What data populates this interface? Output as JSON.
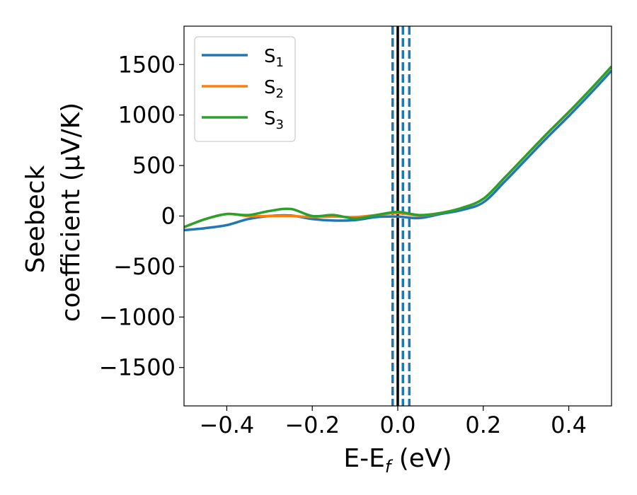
{
  "chart_data": {
    "type": "line",
    "title": "",
    "xlabel": "E-E",
    "xlabel_sub": "f",
    "xlabel_unit": " (eV)",
    "ylabel_line1": "Seebeck",
    "ylabel_line2": "coefficient  (μV/K)",
    "xlim": [
      -0.5,
      0.5
    ],
    "ylim": [
      -1880,
      1880
    ],
    "xticks": [
      -0.4,
      -0.2,
      0.0,
      0.2,
      0.4
    ],
    "xtick_labels": [
      "−0.4",
      "−0.2",
      "0.0",
      "0.2",
      "0.4"
    ],
    "yticks": [
      -1500,
      -1000,
      -500,
      0,
      500,
      1000,
      1500
    ],
    "ytick_labels": [
      "−1500",
      "−1000",
      "−500",
      "0",
      "500",
      "1000",
      "1500"
    ],
    "grid": false,
    "legend_position": "top-left",
    "vertical_lines": [
      {
        "x": -0.012,
        "style": "dashed",
        "color": "#1f77b4"
      },
      {
        "x": 0.0,
        "style": "solid",
        "color": "#000000"
      },
      {
        "x": 0.012,
        "style": "dashed",
        "color": "#1f77b4"
      },
      {
        "x": 0.027,
        "style": "dashed",
        "color": "#1f77b4"
      }
    ],
    "series": [
      {
        "name": "S",
        "sub": "1",
        "color": "#1f77b4",
        "x": [
          -0.5,
          -0.45,
          -0.4,
          -0.35,
          -0.3,
          -0.25,
          -0.2,
          -0.15,
          -0.1,
          -0.05,
          0.0,
          0.05,
          0.1,
          0.15,
          0.2,
          0.25,
          0.3,
          0.35,
          0.4,
          0.45,
          0.5
        ],
        "y": [
          -140,
          -120,
          -90,
          -30,
          0,
          5,
          -30,
          -45,
          -40,
          -10,
          -5,
          -20,
          20,
          60,
          135,
          340,
          560,
          780,
          990,
          1210,
          1440
        ]
      },
      {
        "name": "S",
        "sub": "2",
        "color": "#ff7f0e",
        "x": [
          -0.5,
          -0.45,
          -0.4,
          -0.35,
          -0.3,
          -0.25,
          -0.2,
          -0.15,
          -0.1,
          -0.05,
          0.0,
          0.05,
          0.1,
          0.15,
          0.2,
          0.25,
          0.3,
          0.35,
          0.4,
          0.45,
          0.5
        ],
        "y": [
          -110,
          -30,
          20,
          0,
          0,
          0,
          -10,
          -5,
          -10,
          10,
          30,
          5,
          30,
          80,
          170,
          380,
          600,
          820,
          1030,
          1250,
          1480
        ]
      },
      {
        "name": "S",
        "sub": "3",
        "color": "#2ca02c",
        "x": [
          -0.5,
          -0.45,
          -0.4,
          -0.35,
          -0.3,
          -0.25,
          -0.2,
          -0.15,
          -0.1,
          -0.05,
          0.0,
          0.05,
          0.1,
          0.15,
          0.2,
          0.25,
          0.3,
          0.35,
          0.4,
          0.45,
          0.5
        ],
        "y": [
          -110,
          -30,
          20,
          10,
          50,
          70,
          0,
          10,
          -25,
          10,
          40,
          10,
          30,
          80,
          170,
          380,
          600,
          820,
          1030,
          1250,
          1480
        ]
      }
    ]
  }
}
